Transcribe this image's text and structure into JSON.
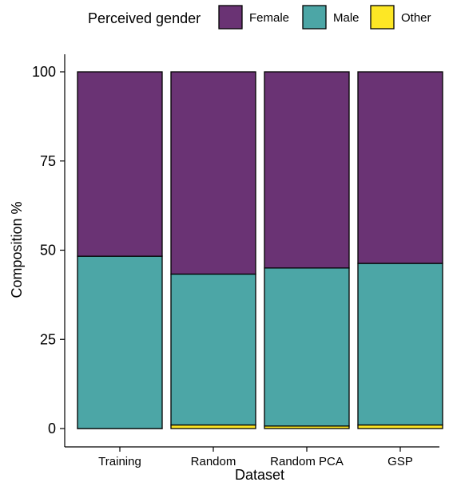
{
  "chart_data": {
    "type": "bar",
    "stacked": true,
    "title": "",
    "xlabel": "Dataset",
    "ylabel": "Composition %",
    "ylim": [
      0,
      100
    ],
    "yticks": [
      0,
      25,
      50,
      75,
      100
    ],
    "categories": [
      "Training",
      "Random",
      "Random PCA",
      "GSP"
    ],
    "legend": {
      "title": "Perceived gender",
      "position": "top"
    },
    "series": [
      {
        "name": "Other",
        "color": "#FDE725",
        "values": [
          0,
          1,
          0.7,
          1
        ]
      },
      {
        "name": "Male",
        "color": "#4CA6A6",
        "values": [
          48.3,
          42.3,
          44.3,
          45.3
        ]
      },
      {
        "name": "Female",
        "color": "#6A3374",
        "values": [
          51.7,
          56.7,
          55.0,
          53.7
        ]
      }
    ],
    "legend_order": [
      "Female",
      "Male",
      "Other"
    ]
  }
}
